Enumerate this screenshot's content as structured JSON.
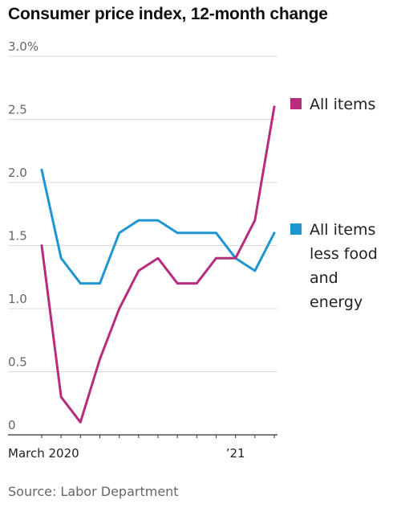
{
  "chart_data": {
    "type": "line",
    "title": "Consumer price index, 12-month change",
    "x": [
      "Mar 2020",
      "Apr 2020",
      "May 2020",
      "Jun 2020",
      "Jul 2020",
      "Aug 2020",
      "Sep 2020",
      "Oct 2020",
      "Nov 2020",
      "Dec 2020",
      "Jan 2021",
      "Feb 2021",
      "Mar 2021"
    ],
    "x_tick_labels": [
      {
        "at": "Mar 2020",
        "text": "March 2020"
      },
      {
        "at": "Jan 2021",
        "text": "’21"
      }
    ],
    "y_ticks": [
      {
        "value": 0,
        "text": "0"
      },
      {
        "value": 0.5,
        "text": "0.5"
      },
      {
        "value": 1.0,
        "text": "1.0"
      },
      {
        "value": 1.5,
        "text": "1.5"
      },
      {
        "value": 2.0,
        "text": "2.0"
      },
      {
        "value": 2.5,
        "text": "2.5"
      },
      {
        "value": 3.0,
        "text": "3.0%"
      }
    ],
    "ylim": [
      0,
      3.0
    ],
    "grid": true,
    "legend_placement": "right",
    "series": [
      {
        "name": "All items",
        "color": "#b82c7e",
        "values": [
          1.5,
          0.3,
          0.1,
          0.6,
          1.0,
          1.3,
          1.4,
          1.2,
          1.2,
          1.4,
          1.4,
          1.7,
          2.6
        ]
      },
      {
        "name": "All items less food and energy",
        "color": "#1e96d2",
        "values": [
          2.1,
          1.4,
          1.2,
          1.2,
          1.6,
          1.7,
          1.7,
          1.6,
          1.6,
          1.6,
          1.4,
          1.3,
          1.6
        ]
      }
    ],
    "legend": [
      {
        "lines": [
          "All items"
        ],
        "color": "#b82c7e"
      },
      {
        "lines": [
          "All items",
          "less food",
          "and",
          "energy"
        ],
        "color": "#1e96d2"
      }
    ]
  },
  "source": "Source: Labor Department"
}
